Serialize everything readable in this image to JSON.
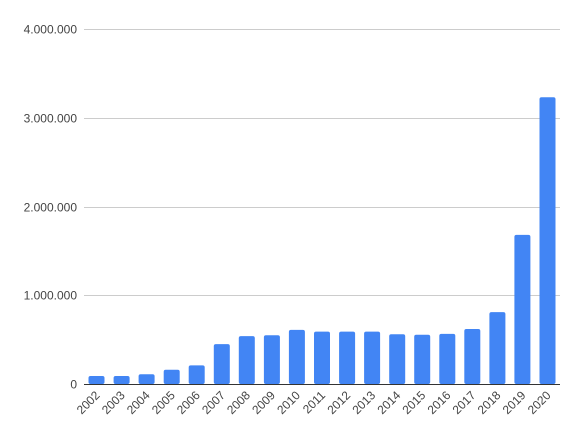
{
  "chart_data": {
    "type": "bar",
    "title": "",
    "xlabel": "",
    "ylabel": "",
    "categories": [
      "2002",
      "2003",
      "2004",
      "2005",
      "2006",
      "2007",
      "2008",
      "2009",
      "2010",
      "2011",
      "2012",
      "2013",
      "2014",
      "2015",
      "2016",
      "2017",
      "2018",
      "2019",
      "2020"
    ],
    "values": [
      90000,
      90000,
      110000,
      160000,
      210000,
      450000,
      540000,
      550000,
      610000,
      590000,
      590000,
      590000,
      560000,
      555000,
      565000,
      620000,
      810000,
      1680000,
      3230000
    ],
    "ylim": [
      0,
      4000000
    ],
    "yticks": [
      0,
      1000000,
      2000000,
      3000000,
      4000000
    ],
    "ytick_labels": [
      "0",
      "1.000.000",
      "2.000.000",
      "3.000.000",
      "4.000.000"
    ],
    "bar_color": "#4285f4",
    "grid": true,
    "legend": "none"
  }
}
